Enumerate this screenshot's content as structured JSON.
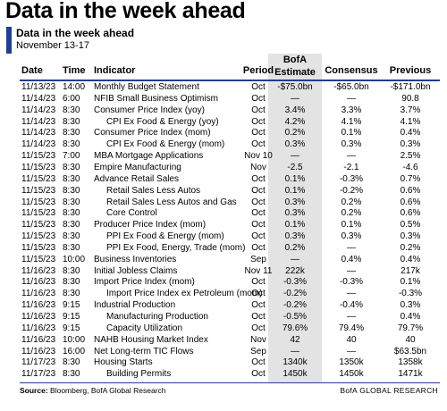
{
  "header": {
    "title": "Data in the week ahead",
    "subtitle": "Data in the week ahead",
    "date_range": "November 13-17"
  },
  "table": {
    "columns": [
      "Date",
      "Time",
      "Indicator",
      "Period",
      "BofA Estimate",
      "Consensus",
      "Previous"
    ],
    "rows": [
      [
        "11/13/23",
        "14:00",
        "Monthly Budget Statement",
        "Oct",
        "-$75.0bn",
        "-$65.0bn",
        "-$171.0bn"
      ],
      [
        "11/14/23",
        "6:00",
        "NFIB Small Business Optimism",
        "Oct",
        "—",
        "—",
        "90.8"
      ],
      [
        "11/14/23",
        "8:30",
        "Consumer Price Index (yoy)",
        "Oct",
        "3.4%",
        "3.3%",
        "3.7%"
      ],
      [
        "11/14/23",
        "8:30",
        "CPI Ex Food & Energy (yoy)",
        "Oct",
        "4.2%",
        "4.1%",
        "4.1%"
      ],
      [
        "11/14/23",
        "8:30",
        "Consumer Price Index (mom)",
        "Oct",
        "0.2%",
        "0.1%",
        "0.4%"
      ],
      [
        "11/14/23",
        "8:30",
        "CPI Ex Food & Energy (mom)",
        "Oct",
        "0.3%",
        "0.3%",
        "0.3%"
      ],
      [
        "11/15/23",
        "7:00",
        "MBA Mortgage Applications",
        "Nov 10",
        "—",
        "—",
        "2.5%"
      ],
      [
        "11/15/23",
        "8:30",
        "Empire Manufacturing",
        "Nov",
        "-2.5",
        "-2.1",
        "-4.6"
      ],
      [
        "11/15/23",
        "8:30",
        "Advance Retail Sales",
        "Oct",
        "0.1%",
        "-0.3%",
        "0.7%"
      ],
      [
        "11/15/23",
        "8:30",
        "Retail Sales Less Autos",
        "Oct",
        "0.1%",
        "-0.2%",
        "0.6%"
      ],
      [
        "11/15/23",
        "8:30",
        "Retail Sales Less Autos and Gas",
        "Oct",
        "0.3%",
        "0.2%",
        "0.6%"
      ],
      [
        "11/15/23",
        "8:30",
        "Core Control",
        "Oct",
        "0.3%",
        "0.2%",
        "0.6%"
      ],
      [
        "11/15/23",
        "8:30",
        "Producer Price Index (mom)",
        "Oct",
        "0.1%",
        "0.1%",
        "0.5%"
      ],
      [
        "11/15/23",
        "8:30",
        "PPI Ex Food & Energy (mom)",
        "Oct",
        "0.3%",
        "0.3%",
        "0.3%"
      ],
      [
        "11/15/23",
        "8:30",
        "PPI Ex Food, Energy, Trade (mom)",
        "Oct",
        "0.2%",
        "—",
        "0.2%"
      ],
      [
        "11/15/23",
        "10:00",
        "Business Inventories",
        "Sep",
        "—",
        "0.4%",
        "0.4%"
      ],
      [
        "11/16/23",
        "8:30",
        "Initial Jobless Claims",
        "Nov 11",
        "222k",
        "—",
        "217k"
      ],
      [
        "11/16/23",
        "8:30",
        "Import Price Index (mom)",
        "Oct",
        "-0.3%",
        "-0.3%",
        "0.1%"
      ],
      [
        "11/16/23",
        "8:30",
        "Import Price Index ex Petroleum (mom)",
        "Oct",
        "-0.2%",
        "—",
        "-0.3%"
      ],
      [
        "11/16/23",
        "9:15",
        "Industrial Production",
        "Oct",
        "-0.2%",
        "-0.4%",
        "0.3%"
      ],
      [
        "11/16/23",
        "9:15",
        "Manufacturing Production",
        "Oct",
        "-0.5%",
        "—",
        "0.4%"
      ],
      [
        "11/16/23",
        "9:15",
        "Capacity Utilization",
        "Oct",
        "79.6%",
        "79.4%",
        "79.7%"
      ],
      [
        "11/16/23",
        "10:00",
        "NAHB Housing Market Index",
        "Nov",
        "42",
        "40",
        "40"
      ],
      [
        "11/16/23",
        "16:00",
        "Net Long-term TIC Flows",
        "Sep",
        "—",
        "—",
        "$63.5bn"
      ],
      [
        "11/17/23",
        "8:30",
        "Housing Starts",
        "Oct",
        "1340k",
        "1350k",
        "1358k"
      ],
      [
        "11/17/23",
        "8:30",
        "Building Permits",
        "Oct",
        "1450k",
        "1450k",
        "1471k"
      ]
    ]
  },
  "footer": {
    "source_label": "Source:",
    "source": "Bloomberg, BofA Global Research",
    "brand": "BofA GLOBAL RESEARCH"
  }
}
